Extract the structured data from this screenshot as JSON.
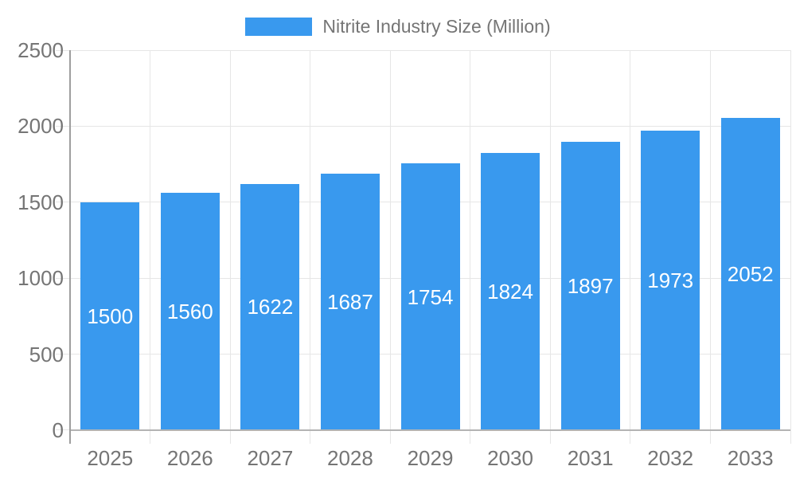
{
  "chart_data": {
    "type": "bar",
    "title": "Nitrite Industry Size (Million)",
    "legend_position": "top",
    "categories": [
      "2025",
      "2026",
      "2027",
      "2028",
      "2029",
      "2030",
      "2031",
      "2032",
      "2033"
    ],
    "series": [
      {
        "name": "Nitrite Industry Size (Million)",
        "values": [
          1500,
          1560,
          1622,
          1687,
          1754,
          1824,
          1897,
          1973,
          2052
        ]
      }
    ],
    "value_labels_shown": true,
    "xlabel": "",
    "ylabel": "",
    "ylim": [
      0,
      2500
    ],
    "yticks": [
      0,
      500,
      1000,
      1500,
      2000,
      2500
    ],
    "grid": true
  },
  "styles": {
    "bar_color": "#3999EE",
    "grid_color": "#E6E6E6",
    "axis_line_color": "#9E9E9E",
    "baseline_color": "#B3B3B3",
    "tick_label_color": "#757575",
    "value_label_color": "#FFFFFF",
    "background_color": "#FFFFFF"
  }
}
